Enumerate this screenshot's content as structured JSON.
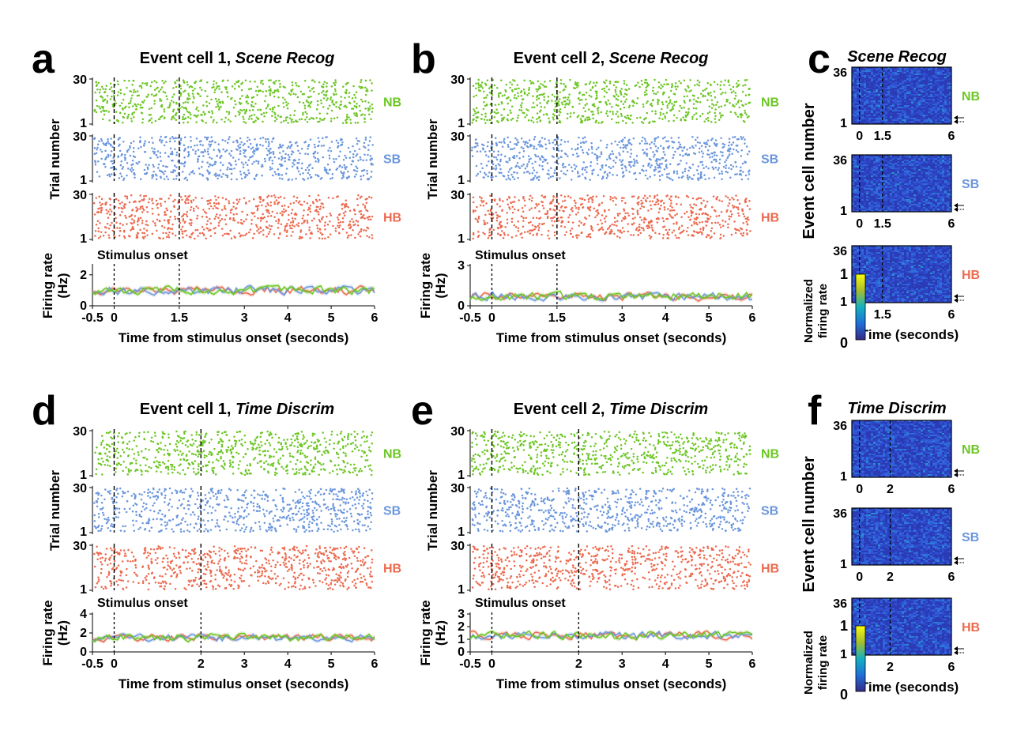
{
  "colors": {
    "NB": "#6cc624",
    "SB": "#6a96dc",
    "HB": "#ec6a4f"
  },
  "colorbar": {
    "label_line1": "Normalized",
    "label_line2": "firing rate",
    "max": "1",
    "min": "0"
  },
  "chart_data": [
    {
      "panel": "a",
      "type": "scatter",
      "title_prefix": "Event cell 1, ",
      "title_task": "Scene Recog",
      "groups": [
        "NB",
        "SB",
        "HB"
      ],
      "raster_ylabel": "Trial number",
      "raster_yticks": [
        "30",
        "1"
      ],
      "raster_ylim": [
        1,
        30
      ],
      "onset_label": "Stimulus onset",
      "rate_ylabel_line1": "Firing rate",
      "rate_ylabel_line2": "(Hz)",
      "rate_yticks": [
        "2",
        "0"
      ],
      "rate_ylim": [
        0,
        2.6
      ],
      "xticks": [
        "-0.5",
        "0",
        "1.5",
        "3",
        "4",
        "5",
        "6"
      ],
      "xtick_values": [
        -0.5,
        0,
        1.5,
        3,
        4,
        5,
        6
      ],
      "xlim": [
        -0.5,
        6
      ],
      "xlabel": "Time from stimulus onset (seconds)",
      "markers": [
        0,
        1.5
      ],
      "rate_mean": {
        "NB": 1.0,
        "SB": 1.0,
        "HB": 1.0
      }
    },
    {
      "panel": "b",
      "type": "scatter",
      "title_prefix": "Event cell 2, ",
      "title_task": "Scene Recog",
      "groups": [
        "NB",
        "SB",
        "HB"
      ],
      "raster_ylabel": "Trial number",
      "raster_yticks": [
        "30",
        "1"
      ],
      "raster_ylim": [
        1,
        30
      ],
      "onset_label": "Stimulus onset",
      "rate_ylabel_line1": "Firing rate",
      "rate_ylabel_line2": "(Hz)",
      "rate_yticks": [
        "3",
        "0"
      ],
      "rate_ylim": [
        0,
        3
      ],
      "xticks": [
        "-0.5",
        "0",
        "1.5",
        "3",
        "4",
        "5",
        "6"
      ],
      "xtick_values": [
        -0.5,
        0,
        1.5,
        3,
        4,
        5,
        6
      ],
      "xlim": [
        -0.5,
        6
      ],
      "xlabel": "Time from stimulus onset (seconds)",
      "markers": [
        0,
        1.5
      ],
      "rate_mean": {
        "NB": 0.7,
        "SB": 0.7,
        "HB": 0.7
      }
    },
    {
      "panel": "d",
      "type": "scatter",
      "title_prefix": "Event cell 1, ",
      "title_task": "Time Discrim",
      "groups": [
        "NB",
        "SB",
        "HB"
      ],
      "raster_ylabel": "Trial number",
      "raster_yticks": [
        "30",
        "1"
      ],
      "raster_ylim": [
        1,
        30
      ],
      "onset_label": "Stimulus onset",
      "rate_ylabel_line1": "Firing rate",
      "rate_ylabel_line2": "(Hz)",
      "rate_yticks": [
        "4",
        "2",
        "0"
      ],
      "rate_ylim": [
        0,
        4
      ],
      "xticks": [
        "-0.5",
        "0",
        "2",
        "3",
        "4",
        "5",
        "6"
      ],
      "xtick_values": [
        -0.5,
        0,
        2,
        3,
        4,
        5,
        6
      ],
      "xlim": [
        -0.5,
        6
      ],
      "xlabel": "Time from stimulus onset (seconds)",
      "markers": [
        0,
        2
      ],
      "rate_mean": {
        "NB": 1.5,
        "SB": 1.5,
        "HB": 1.5
      }
    },
    {
      "panel": "e",
      "type": "scatter",
      "title_prefix": "Event cell 2, ",
      "title_task": "Time Discrim",
      "groups": [
        "NB",
        "SB",
        "HB"
      ],
      "raster_ylabel": "Trial number",
      "raster_yticks": [
        "30",
        "1"
      ],
      "raster_ylim": [
        1,
        30
      ],
      "onset_label": "Stimulus onset",
      "rate_ylabel_line1": "Firing rate",
      "rate_ylabel_line2": "(Hz)",
      "rate_yticks": [
        "3",
        "2",
        "1",
        "0"
      ],
      "rate_ylim": [
        0,
        3
      ],
      "xticks": [
        "-0.5",
        "0",
        "2",
        "3",
        "4",
        "5",
        "6"
      ],
      "xtick_values": [
        -0.5,
        0,
        2,
        3,
        4,
        5,
        6
      ],
      "xlim": [
        -0.5,
        6
      ],
      "xlabel": "Time from stimulus onset (seconds)",
      "markers": [
        0,
        2
      ],
      "rate_mean": {
        "NB": 1.3,
        "SB": 1.3,
        "HB": 1.3
      }
    },
    {
      "panel": "c",
      "type": "heatmap",
      "title": "Scene Recog",
      "groups": [
        "NB",
        "SB",
        "HB"
      ],
      "ylabel": "Event cell number",
      "yticks": [
        "36",
        "1"
      ],
      "ylim": [
        1,
        36
      ],
      "xticks": [
        "0",
        "1.5",
        "6"
      ],
      "xtick_values": [
        0,
        1.5,
        6
      ],
      "xlim": [
        -0.5,
        6
      ],
      "xlabel": "Time (seconds)",
      "markers": [
        0,
        1.5
      ]
    },
    {
      "panel": "f",
      "type": "heatmap",
      "title": "Time Discrim",
      "groups": [
        "NB",
        "SB",
        "HB"
      ],
      "ylabel": "Event cell number",
      "yticks": [
        "36",
        "1"
      ],
      "ylim": [
        1,
        36
      ],
      "xticks": [
        "0",
        "2",
        "6"
      ],
      "xtick_values": [
        0,
        2,
        6
      ],
      "xlim": [
        -0.5,
        6
      ],
      "xlabel": "Time (seconds)",
      "markers": [
        0,
        2
      ]
    }
  ]
}
